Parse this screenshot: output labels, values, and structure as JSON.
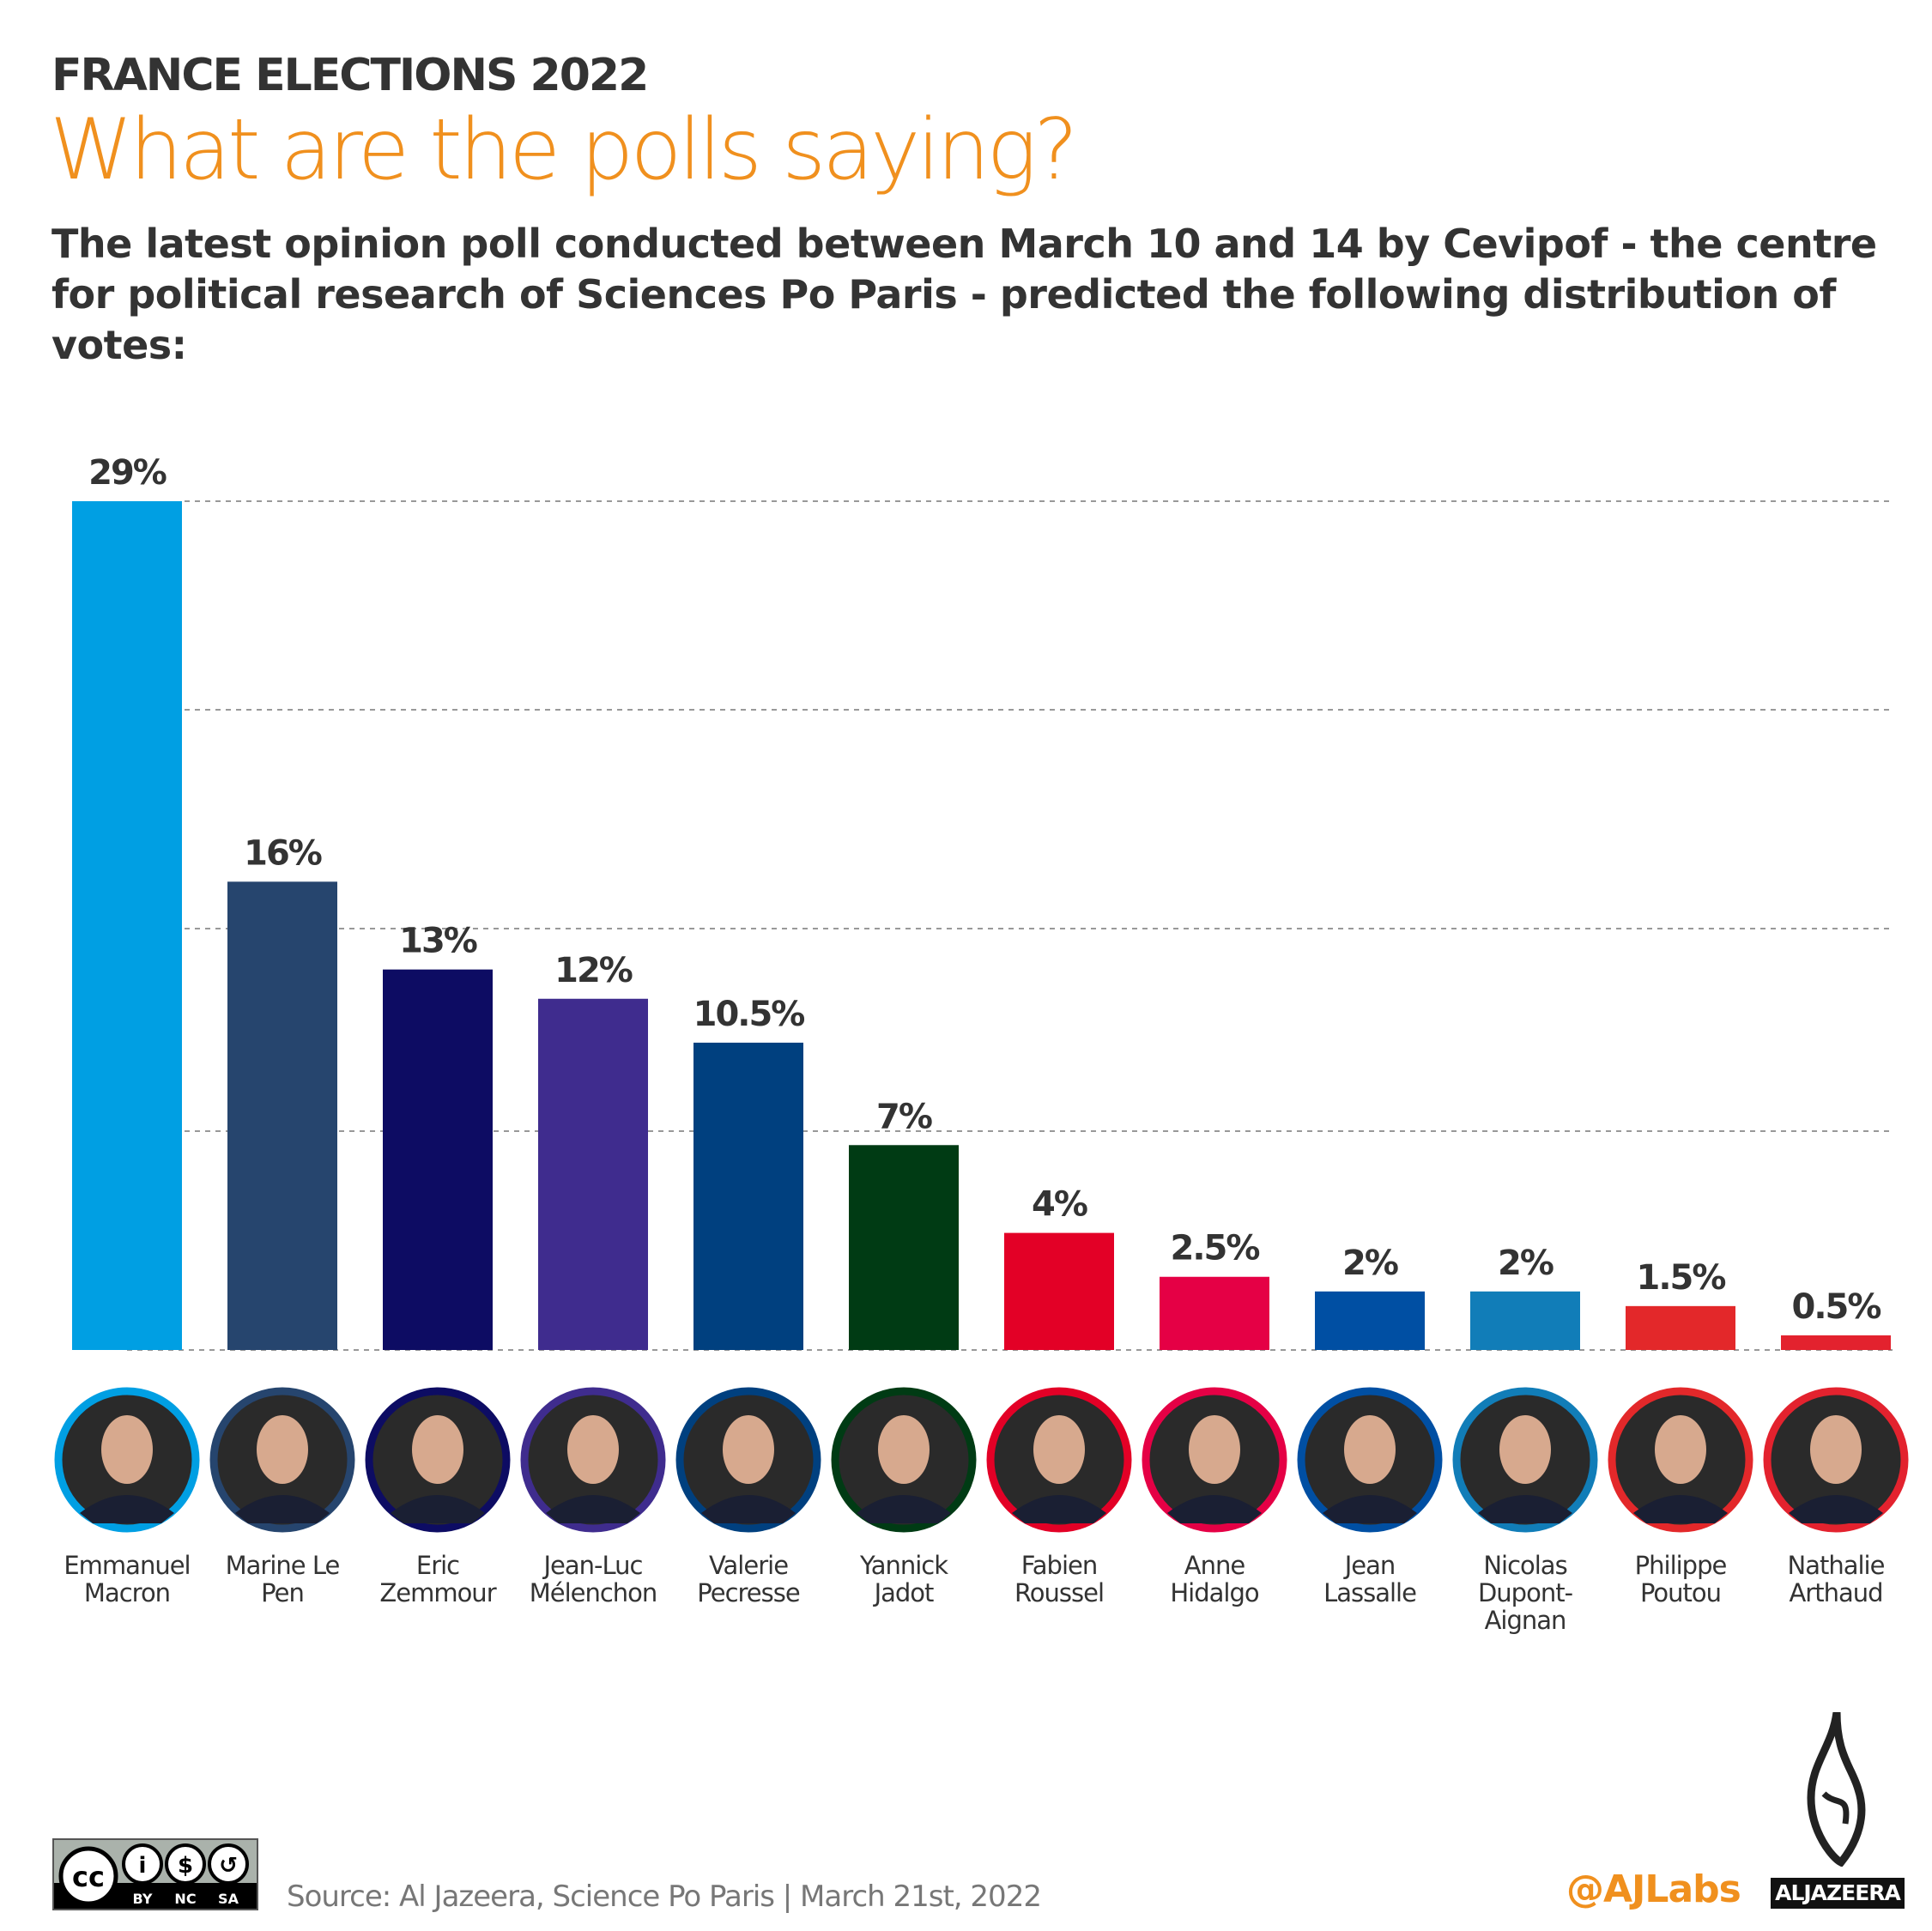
{
  "header": {
    "kicker": "FRANCE ELECTIONS 2022",
    "title": "What are the polls saying?",
    "description": "The latest opinion poll conducted between March 10 and 14 by Cevipof - the centre for political research of Sciences Po Paris - predicted the following distribution of votes:"
  },
  "chart_data": {
    "type": "bar",
    "title": "",
    "xlabel": "",
    "ylabel": "",
    "ylim": [
      0,
      29
    ],
    "grid": true,
    "categories": [
      "Emmanuel Macron",
      "Marine Le Pen",
      "Eric Zemmour",
      "Jean-Luc Mélenchon",
      "Valerie Pecresse",
      "Yannick Jadot",
      "Fabien Roussel",
      "Anne Hidalgo",
      "Jean Lassalle",
      "Nicolas Dupont-Aignan",
      "Philippe Poutou",
      "Nathalie Arthaud"
    ],
    "name_lines": [
      [
        "Emmanuel",
        "Macron"
      ],
      [
        "Marine Le",
        "Pen"
      ],
      [
        "Eric",
        "Zemmour"
      ],
      [
        "Jean-Luc",
        "Mélenchon"
      ],
      [
        "Valerie",
        "Pecresse"
      ],
      [
        "Yannick",
        "Jadot"
      ],
      [
        "Fabien",
        "Roussel"
      ],
      [
        "Anne",
        "Hidalgo"
      ],
      [
        "Jean",
        "Lassalle"
      ],
      [
        "Nicolas",
        "Dupont-",
        "Aignan"
      ],
      [
        "Philippe",
        "Poutou"
      ],
      [
        "Nathalie",
        "Arthaud"
      ]
    ],
    "values": [
      29,
      16,
      13,
      12,
      10.5,
      7,
      4,
      2.5,
      2,
      2,
      1.5,
      0.5
    ],
    "labels": [
      "29%",
      "16%",
      "13%",
      "12%",
      "10.5%",
      "7%",
      "4%",
      "2.5%",
      "2%",
      "2%",
      "1.5%",
      "0.5%"
    ],
    "colors": [
      "#009fe3",
      "#26456e",
      "#0d0c63",
      "#3f2c8e",
      "#00407f",
      "#003b14",
      "#e30026",
      "#e50045",
      "#004fa3",
      "#117db8",
      "#e3282a",
      "#e3222e"
    ]
  },
  "footer": {
    "license": [
      "BY",
      "NC",
      "SA"
    ],
    "source": "Source: Al Jazeera, Science Po Paris | March 21st, 2022",
    "handle": "@AJLabs",
    "brand": "ALJAZEERA"
  }
}
